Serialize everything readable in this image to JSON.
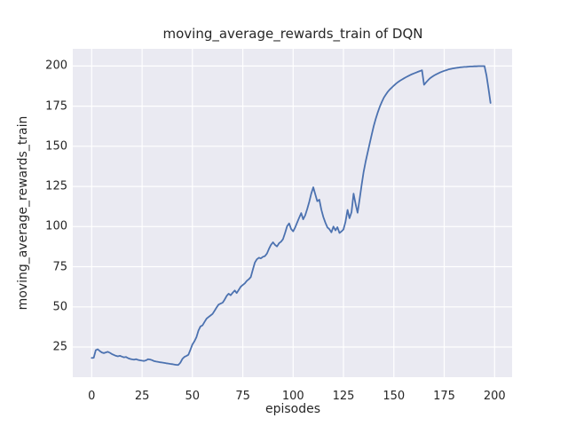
{
  "colors": {
    "figure_bg": "#FFFFFF",
    "axes_bg": "#EAEAF2",
    "grid": "#FFFFFF",
    "line": "#4C72B0",
    "text": "#262626"
  },
  "chart_data": {
    "type": "line",
    "title": "moving_average_rewards_train of DQN",
    "xlabel": "episodes",
    "ylabel": "moving_average_rewards_train",
    "x_ticks": [
      0,
      25,
      50,
      75,
      100,
      125,
      150,
      175,
      200
    ],
    "y_ticks": [
      25,
      50,
      75,
      100,
      125,
      150,
      175,
      200
    ],
    "xlim": [
      -9.4,
      208.7
    ],
    "ylim": [
      6.2,
      210.7
    ],
    "grid": true,
    "legend": false,
    "series": [
      {
        "name": "moving_average_rewards_train",
        "points": [
          [
            0,
            18.2
          ],
          [
            1,
            18.3
          ],
          [
            2,
            23.0
          ],
          [
            3,
            23.6
          ],
          [
            4,
            22.5
          ],
          [
            5,
            21.6
          ],
          [
            6,
            21.2
          ],
          [
            7,
            21.6
          ],
          [
            8,
            22.0
          ],
          [
            9,
            21.4
          ],
          [
            10,
            20.6
          ],
          [
            11,
            20.1
          ],
          [
            12,
            19.5
          ],
          [
            13,
            19.2
          ],
          [
            14,
            19.5
          ],
          [
            15,
            19.0
          ],
          [
            16,
            18.6
          ],
          [
            17,
            18.8
          ],
          [
            18,
            18.1
          ],
          [
            19,
            17.6
          ],
          [
            20,
            17.3
          ],
          [
            21,
            17.1
          ],
          [
            22,
            17.4
          ],
          [
            23,
            17.0
          ],
          [
            24,
            16.7
          ],
          [
            25,
            16.5
          ],
          [
            26,
            16.3
          ],
          [
            27,
            16.7
          ],
          [
            28,
            17.4
          ],
          [
            29,
            17.2
          ],
          [
            30,
            16.8
          ],
          [
            31,
            16.2
          ],
          [
            32,
            15.9
          ],
          [
            33,
            15.7
          ],
          [
            34,
            15.5
          ],
          [
            35,
            15.3
          ],
          [
            36,
            15.1
          ],
          [
            37,
            14.9
          ],
          [
            38,
            14.7
          ],
          [
            39,
            14.5
          ],
          [
            40,
            14.3
          ],
          [
            41,
            14.1
          ],
          [
            42,
            13.9
          ],
          [
            43,
            13.8
          ],
          [
            44,
            15.2
          ],
          [
            45,
            17.6
          ],
          [
            46,
            18.8
          ],
          [
            47,
            19.4
          ],
          [
            48,
            20.2
          ],
          [
            49,
            23.2
          ],
          [
            50,
            26.6
          ],
          [
            51,
            28.6
          ],
          [
            52,
            31.2
          ],
          [
            53,
            35.2
          ],
          [
            54,
            37.8
          ],
          [
            55,
            38.5
          ],
          [
            56,
            40.6
          ],
          [
            57,
            42.6
          ],
          [
            58,
            43.7
          ],
          [
            59,
            44.6
          ],
          [
            60,
            45.6
          ],
          [
            61,
            47.6
          ],
          [
            62,
            49.6
          ],
          [
            63,
            51.4
          ],
          [
            64,
            52.0
          ],
          [
            65,
            52.6
          ],
          [
            66,
            54.5
          ],
          [
            67,
            56.8
          ],
          [
            68,
            58.2
          ],
          [
            69,
            57.2
          ],
          [
            70,
            58.8
          ],
          [
            71,
            60.2
          ],
          [
            72,
            58.6
          ],
          [
            73,
            60.6
          ],
          [
            74,
            62.6
          ],
          [
            75,
            63.6
          ],
          [
            76,
            64.6
          ],
          [
            77,
            66.2
          ],
          [
            78,
            67.2
          ],
          [
            79,
            68.6
          ],
          [
            80,
            73.2
          ],
          [
            81,
            77.6
          ],
          [
            82,
            79.6
          ],
          [
            83,
            80.6
          ],
          [
            84,
            80.2
          ],
          [
            85,
            81.2
          ],
          [
            86,
            81.6
          ],
          [
            87,
            83.2
          ],
          [
            88,
            86.2
          ],
          [
            89,
            88.6
          ],
          [
            90,
            90.2
          ],
          [
            91,
            88.6
          ],
          [
            92,
            87.6
          ],
          [
            93,
            89.6
          ],
          [
            94,
            90.6
          ],
          [
            95,
            92.2
          ],
          [
            96,
            96.0
          ],
          [
            97,
            100.2
          ],
          [
            98,
            102.0
          ],
          [
            99,
            98.5
          ],
          [
            100,
            97.0
          ],
          [
            101,
            99.5
          ],
          [
            102,
            102.5
          ],
          [
            103,
            105.5
          ],
          [
            104,
            108.4
          ],
          [
            105,
            104.5
          ],
          [
            106,
            107.0
          ],
          [
            107,
            111.0
          ],
          [
            108,
            115.5
          ],
          [
            109,
            120.5
          ],
          [
            110,
            124.5
          ],
          [
            111,
            120.0
          ],
          [
            112,
            115.8
          ],
          [
            113,
            116.8
          ],
          [
            114,
            110.5
          ],
          [
            115,
            106.0
          ],
          [
            116,
            102.5
          ],
          [
            117,
            99.5
          ],
          [
            118,
            98.4
          ],
          [
            119,
            96.4
          ],
          [
            120,
            100.0
          ],
          [
            121,
            97.6
          ],
          [
            122,
            99.6
          ],
          [
            123,
            96.0
          ],
          [
            124,
            97.0
          ],
          [
            125,
            98.2
          ],
          [
            126,
            103.0
          ],
          [
            127,
            110.4
          ],
          [
            128,
            105.2
          ],
          [
            129,
            109.0
          ],
          [
            130,
            120.5
          ],
          [
            131,
            114.0
          ],
          [
            132,
            108.6
          ],
          [
            133,
            117.0
          ],
          [
            134,
            126.0
          ],
          [
            135,
            134.0
          ],
          [
            136,
            140.5
          ],
          [
            137,
            146.2
          ],
          [
            138,
            151.6
          ],
          [
            139,
            157.2
          ],
          [
            140,
            162.6
          ],
          [
            141,
            167.0
          ],
          [
            142,
            171.0
          ],
          [
            143,
            174.6
          ],
          [
            144,
            177.6
          ],
          [
            145,
            180.2
          ],
          [
            146,
            182.2
          ],
          [
            147,
            184.0
          ],
          [
            148,
            185.4
          ],
          [
            149,
            186.6
          ],
          [
            150,
            187.8
          ],
          [
            151,
            188.9
          ],
          [
            152,
            189.9
          ],
          [
            153,
            190.8
          ],
          [
            154,
            191.6
          ],
          [
            155,
            192.3
          ],
          [
            156,
            193.0
          ],
          [
            157,
            193.7
          ],
          [
            158,
            194.3
          ],
          [
            159,
            194.9
          ],
          [
            160,
            195.4
          ],
          [
            161,
            195.9
          ],
          [
            162,
            196.4
          ],
          [
            163,
            196.9
          ],
          [
            164,
            197.3
          ],
          [
            165,
            188.3
          ],
          [
            166,
            189.8
          ],
          [
            167,
            191.2
          ],
          [
            168,
            192.4
          ],
          [
            169,
            193.3
          ],
          [
            170,
            194.1
          ],
          [
            171,
            194.8
          ],
          [
            172,
            195.4
          ],
          [
            173,
            196.0
          ],
          [
            174,
            196.5
          ],
          [
            175,
            197.0
          ],
          [
            176,
            197.4
          ],
          [
            177,
            197.8
          ],
          [
            178,
            198.1
          ],
          [
            179,
            198.4
          ],
          [
            180,
            198.6
          ],
          [
            181,
            198.8
          ],
          [
            182,
            199.0
          ],
          [
            183,
            199.2
          ],
          [
            184,
            199.3
          ],
          [
            185,
            199.4
          ],
          [
            186,
            199.5
          ],
          [
            187,
            199.6
          ],
          [
            188,
            199.7
          ],
          [
            189,
            199.7
          ],
          [
            190,
            199.8
          ],
          [
            191,
            199.8
          ],
          [
            192,
            199.9
          ],
          [
            193,
            199.9
          ],
          [
            194,
            199.9
          ],
          [
            195,
            199.9
          ],
          [
            196,
            194.0
          ],
          [
            197,
            186.0
          ],
          [
            198,
            177.0
          ]
        ]
      }
    ]
  }
}
